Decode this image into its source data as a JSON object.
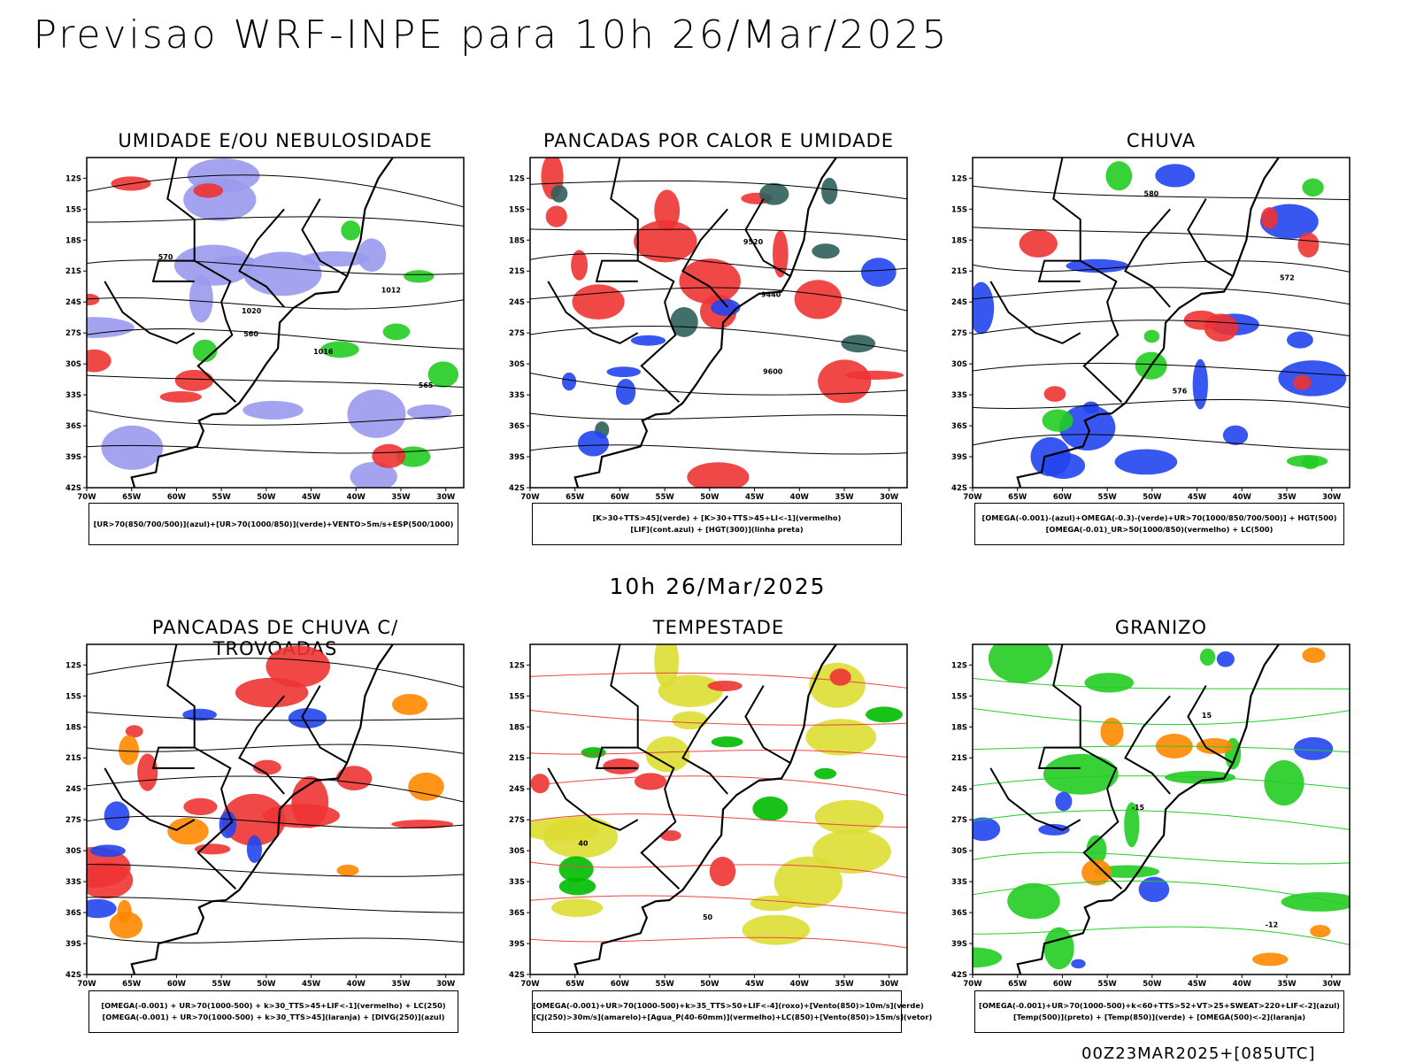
{
  "title": "Previsao WRF-INPE  para 10h 26/Mar/2025",
  "mid_label": "10h 26/Mar/2025",
  "footer": "00Z23MAR2025+[085UTC]",
  "chart_data": [
    {
      "type": "map",
      "title": "UMIDADE E/OU NEBULOSIDADE",
      "legend": [
        "[UR>70(850/700/500)](azul)+[UR>70(1000/850)](verde)+VENTO>5m/s+ESP(500/1000)"
      ],
      "fills": [
        "#9999ee",
        "#22cc22",
        "#ee3333"
      ],
      "contour_labels": [
        "1012",
        "1016",
        "1020",
        "570",
        "565",
        "560"
      ]
    },
    {
      "type": "map",
      "title": "PANCADAS POR CALOR E UMIDADE",
      "legend": [
        "[K>30+TTS>45](verde) + [K>30+TTS>45+LI<-1](vermelho)",
        "[LIF](cont.azul) + [HGT(300)](linha preta)"
      ],
      "fills": [
        "#ee3333",
        "#2f5f5a",
        "#2244ee"
      ],
      "contour_labels": [
        "9600",
        "9520",
        "9440"
      ]
    },
    {
      "type": "map",
      "title": "CHUVA",
      "legend": [
        "[OMEGA(-0.001)-(azul)+OMEGA(-0.3)-(verde)+UR>70(1000/850/700/500)] + HGT(500)",
        "[OMEGA(-0.01)_UR>50(1000/850)(vermelho) + LC(500)"
      ],
      "fills": [
        "#2244ee",
        "#22cc22",
        "#ee3333"
      ],
      "contour_labels": [
        "580",
        "576",
        "572"
      ]
    },
    {
      "type": "map",
      "title": "PANCADAS DE CHUVA C/ TROVOADAS",
      "legend": [
        "[OMEGA(-0.001) + UR>70(1000-500) + k>30_TTS>45+LIF<-1](vermelho) + LC(250)",
        "[OMEGA(-0.001) + UR>70(1000-500) + k>30_TTS>45](laranja) + [DIVG(250)](azul)"
      ],
      "fills": [
        "#ee3333",
        "#2244ee",
        "#ff8800"
      ],
      "contour_labels": []
    },
    {
      "type": "map",
      "title": "TEMPESTADE",
      "legend": [
        "[OMEGA(-0.001)+UR>70(1000-500)+k>35_TTS>50+LIF<-4](roxo)+[Vento(850)>10m/s](verde)",
        "[CJ(250)>30m/s](amarelo)+[Agua_P(40-60mm)](vermelho)+LC(850)+[Vento(850)>15m/s](vetor)"
      ],
      "fills": [
        "#dddd33",
        "#00bb00",
        "#ee3333"
      ],
      "contour_labels": [
        "40",
        "50"
      ]
    },
    {
      "type": "map",
      "title": "GRANIZO",
      "legend": [
        "[OMEGA(-0.001)+UR>70(1000-500)+k<60+TTS>52+VT>25+SWEAT>220+LIF<-2](azul)",
        "[Temp(500)](preto) + [Temp(850)](verde) + [OMEGA(500)<-2](laranja)"
      ],
      "fills": [
        "#22cc22",
        "#2244ee",
        "#ff8800"
      ],
      "contour_labels": [
        "-12",
        "-15",
        "15"
      ]
    }
  ],
  "axes": {
    "lat_ticks": [
      "12S",
      "15S",
      "18S",
      "21S",
      "24S",
      "27S",
      "30S",
      "33S",
      "36S",
      "39S",
      "42S"
    ],
    "lat_values": [
      -12,
      -15,
      -18,
      -21,
      -24,
      -27,
      -30,
      -33,
      -36,
      -39,
      -42
    ],
    "lon_ticks": [
      "70W",
      "65W",
      "60W",
      "55W",
      "50W",
      "45W",
      "40W",
      "35W",
      "30W"
    ],
    "lon_values": [
      -70,
      -65,
      -60,
      -55,
      -50,
      -45,
      -40,
      -35,
      -30
    ],
    "lon_range": [
      -70,
      -28
    ],
    "lat_range": [
      -10,
      -42
    ]
  }
}
